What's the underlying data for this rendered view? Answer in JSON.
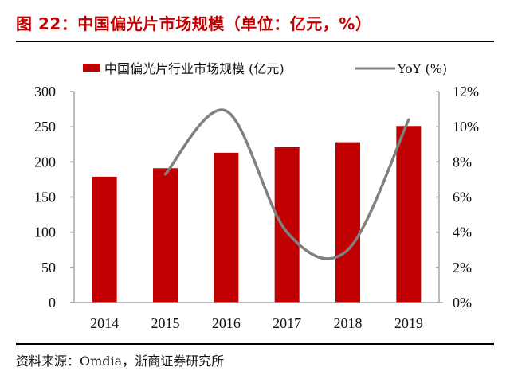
{
  "title": "图 22：中国偏光片市场规模（单位：亿元，%）",
  "source": "资料来源：Omdia，浙商证券研究所",
  "colors": {
    "title": "#c00000",
    "bar": "#c00000",
    "line": "#808080"
  },
  "chart_data": {
    "type": "bar+line",
    "categories": [
      "2014",
      "2015",
      "2016",
      "2017",
      "2018",
      "2019"
    ],
    "series": [
      {
        "name": "中国偏光片行业市场规模 (亿元)",
        "type": "bar",
        "axis": "left",
        "values": [
          179,
          191,
          213,
          221,
          228,
          251
        ]
      },
      {
        "name": "YoY (%)",
        "type": "line",
        "axis": "right",
        "smooth": true,
        "values": [
          null,
          7.3,
          10.9,
          4.0,
          3.0,
          10.4
        ]
      }
    ],
    "left_axis": {
      "ylim": [
        0,
        300
      ],
      "ticks": [
        "0",
        "50",
        "100",
        "150",
        "200",
        "250",
        "300"
      ]
    },
    "right_axis": {
      "ylim": [
        0,
        12
      ],
      "ticks": [
        "0%",
        "2%",
        "4%",
        "6%",
        "8%",
        "10%",
        "12%"
      ]
    },
    "legend": {
      "position": "top",
      "entries": [
        "中国偏光片行业市场规模 (亿元)",
        "YoY (%)"
      ]
    },
    "grid": false
  }
}
